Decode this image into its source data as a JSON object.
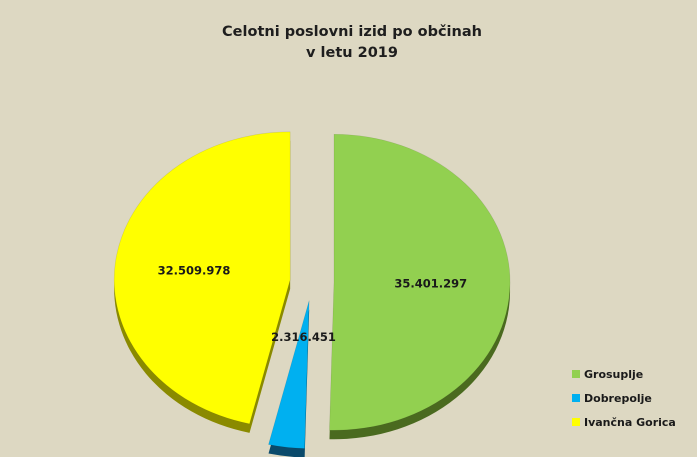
{
  "chart_data": {
    "type": "pie",
    "title": "Celotni poslovni izid po občinah",
    "subtitle": "v letu 2019",
    "categories": [
      "Grosuplje",
      "Dobrepolje",
      "Ivančna Gorica"
    ],
    "values": [
      35401297,
      2316451,
      32509978
    ],
    "data_labels": [
      "35.401.297",
      "2.316.451",
      "32.509.978"
    ],
    "colors": [
      "#92d050",
      "#00b0f0",
      "#ffff00"
    ],
    "shadow_colors": [
      "#4a6a1f",
      "#0a4a6b",
      "#8a8a00"
    ],
    "style": "3d-exploded",
    "legend_position": "right-bottom"
  }
}
